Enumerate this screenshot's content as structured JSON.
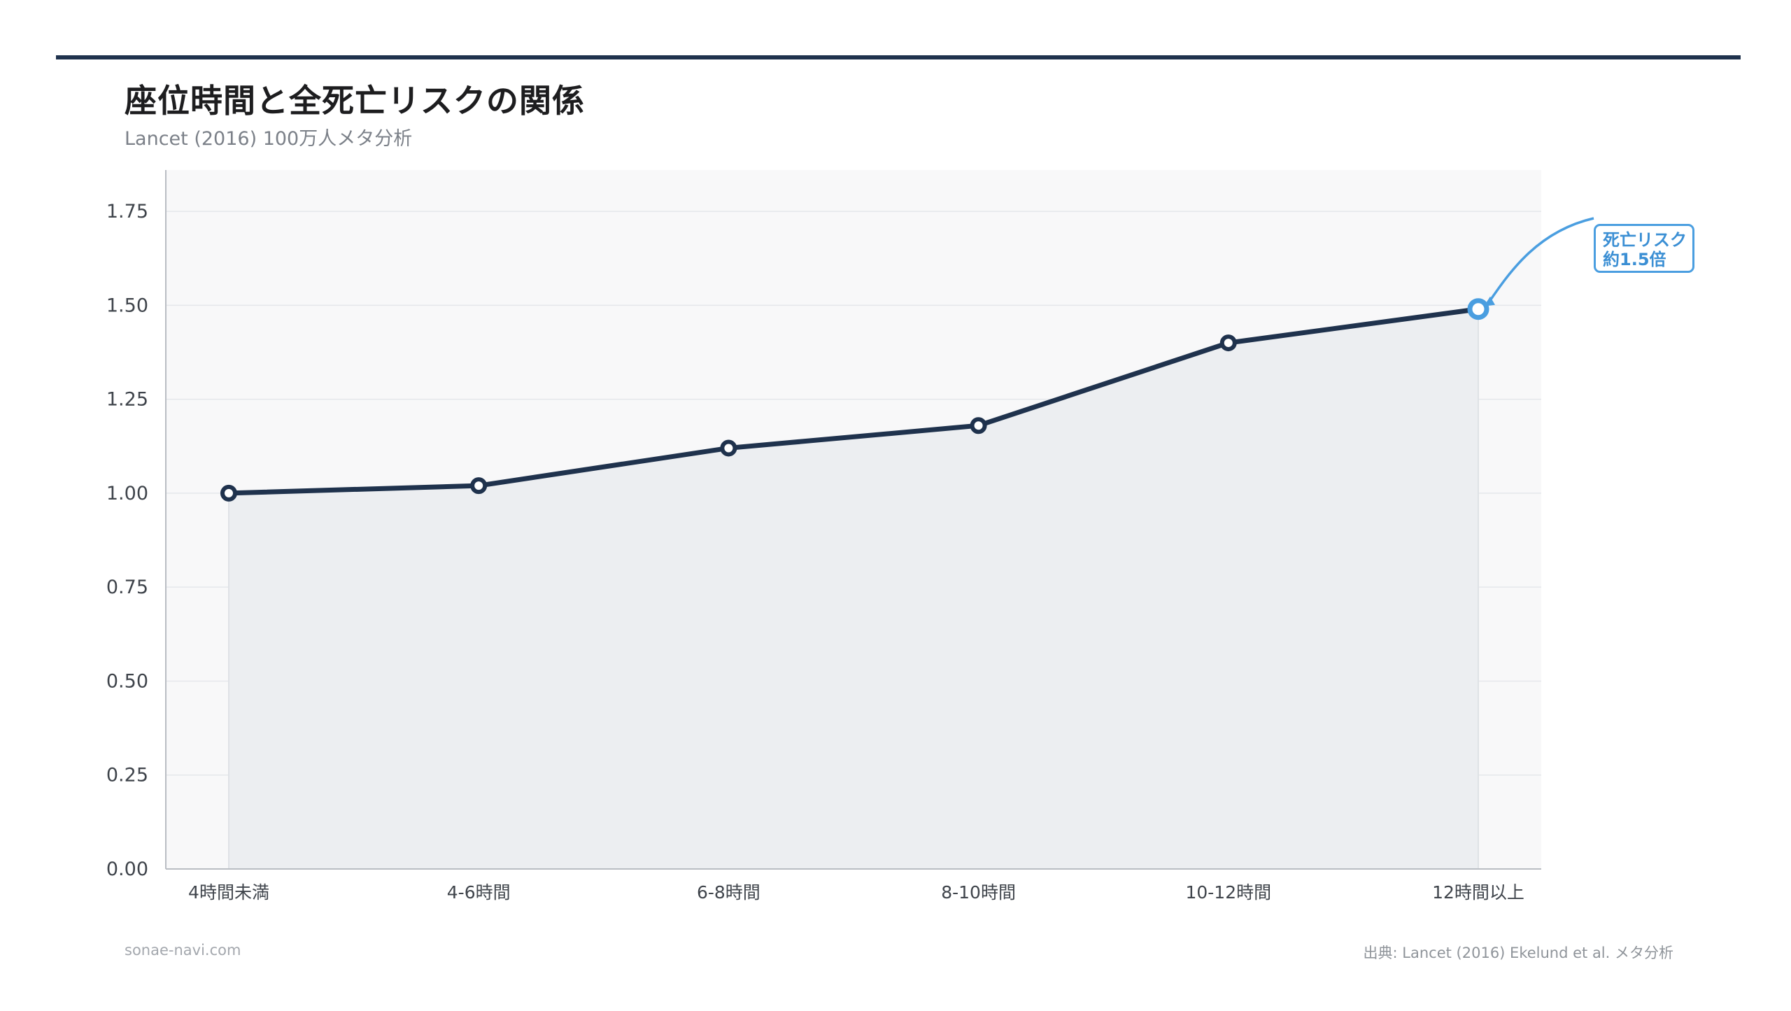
{
  "header": {
    "title": "座位時間と全死亡リスクの関係",
    "subtitle": "Lancet (2016) 100万人メタ分析"
  },
  "footer": {
    "site": "sonae-navi.com",
    "source": "出典: Lancet (2016) Ekelund et al. メタ分析"
  },
  "annotation": {
    "line1": "死亡リスク",
    "line2": "約1.5倍",
    "target_category": "12時間以上"
  },
  "colors": {
    "line": "#1f324d",
    "highlight": "#4a9ee0",
    "plot_bg": "#f8f8f9",
    "area_fill": "#eceef1",
    "grid": "#e5e7eb"
  },
  "chart_data": {
    "type": "line",
    "title": "座位時間と全死亡リスクの関係",
    "subtitle": "Lancet (2016) 100万人メタ分析",
    "xlabel": "",
    "ylabel": "",
    "categories": [
      "4時間未満",
      "4-6時間",
      "6-8時間",
      "8-10時間",
      "10-12時間",
      "12時間以上"
    ],
    "values": [
      1.0,
      1.02,
      1.12,
      1.18,
      1.4,
      1.49
    ],
    "ylim": [
      0,
      1.86
    ],
    "yticks": [
      0.0,
      0.25,
      0.5,
      0.75,
      1.0,
      1.25,
      1.5,
      1.75
    ],
    "ytick_labels": [
      "0.00",
      "0.25",
      "0.50",
      "0.75",
      "1.00",
      "1.25",
      "1.50",
      "1.75"
    ],
    "grid": true,
    "area_fill": true
  }
}
